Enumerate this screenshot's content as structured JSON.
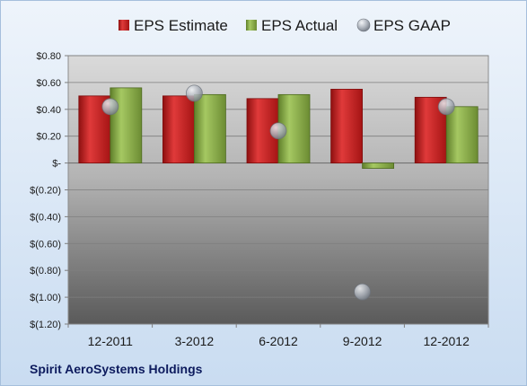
{
  "company": "Spirit AeroSystems Holdings",
  "chart_data": {
    "type": "bar",
    "categories": [
      "12-2011",
      "3-2012",
      "6-2012",
      "9-2012",
      "12-2012"
    ],
    "series": [
      {
        "name": "EPS Estimate",
        "kind": "bar",
        "color": "#cc1f1f",
        "values": [
          0.5,
          0.5,
          0.48,
          0.55,
          0.49
        ]
      },
      {
        "name": "EPS Actual",
        "kind": "bar",
        "color": "#8cb04a",
        "values": [
          0.56,
          0.51,
          0.51,
          -0.04,
          0.42
        ]
      },
      {
        "name": "EPS GAAP",
        "kind": "scatter",
        "color": "#a8aeb6",
        "values": [
          0.42,
          0.52,
          0.24,
          -0.96,
          0.42
        ]
      }
    ],
    "yticks": [
      0.8,
      0.6,
      0.4,
      0.2,
      0,
      -0.2,
      -0.4,
      -0.6,
      -0.8,
      -1.0,
      -1.2
    ],
    "ytick_labels": [
      "$0.80",
      "$0.60",
      "$0.40",
      "$0.20",
      "$-",
      "$(0.20)",
      "$(0.40)",
      "$(0.60)",
      "$(0.80)",
      "$(1.00)",
      "$(1.20)"
    ],
    "ylim": [
      -1.2,
      0.8
    ],
    "legend_position": "top",
    "grid": true
  }
}
